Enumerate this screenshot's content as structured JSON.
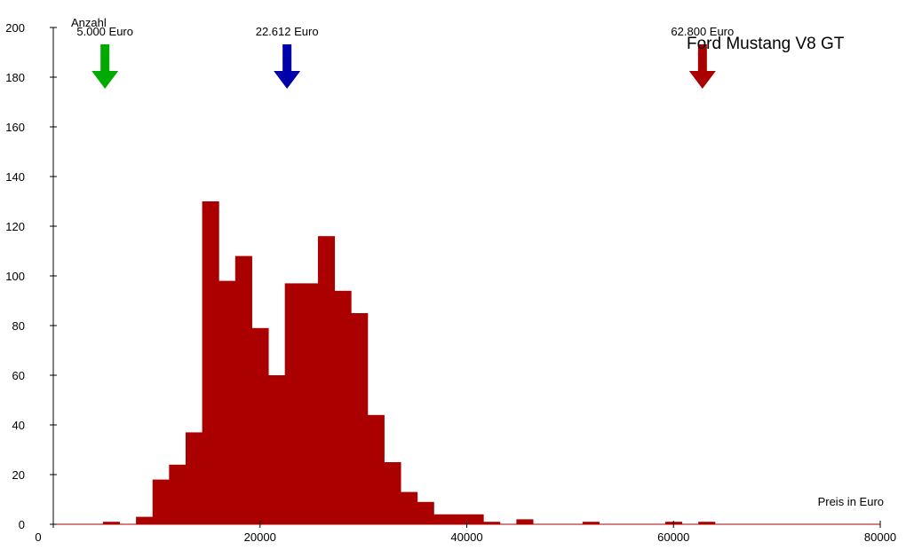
{
  "chart_data": {
    "type": "bar",
    "title": "Ford Mustang V8 GT",
    "ylabel": "Anzahl",
    "xlabel": "Preis in Euro",
    "xlim": [
      0,
      80000
    ],
    "ylim": [
      0,
      200
    ],
    "x_ticks": [
      "0",
      "20000",
      "40000",
      "60000",
      "80000"
    ],
    "y_ticks": [
      "0",
      "20",
      "40",
      "60",
      "80",
      "100",
      "120",
      "140",
      "160",
      "180",
      "200"
    ],
    "bin_width": 1600,
    "bins": [
      {
        "x0": 4800,
        "count": 1
      },
      {
        "x0": 8000,
        "count": 3
      },
      {
        "x0": 9600,
        "count": 18
      },
      {
        "x0": 11200,
        "count": 24
      },
      {
        "x0": 12800,
        "count": 37
      },
      {
        "x0": 14400,
        "count": 130
      },
      {
        "x0": 16000,
        "count": 98
      },
      {
        "x0": 17600,
        "count": 108
      },
      {
        "x0": 19200,
        "count": 79
      },
      {
        "x0": 20800,
        "count": 60
      },
      {
        "x0": 22400,
        "count": 97
      },
      {
        "x0": 24000,
        "count": 97
      },
      {
        "x0": 25600,
        "count": 116
      },
      {
        "x0": 27200,
        "count": 94
      },
      {
        "x0": 28800,
        "count": 85
      },
      {
        "x0": 30400,
        "count": 44
      },
      {
        "x0": 32000,
        "count": 25
      },
      {
        "x0": 33600,
        "count": 13
      },
      {
        "x0": 35200,
        "count": 9
      },
      {
        "x0": 36800,
        "count": 4
      },
      {
        "x0": 38400,
        "count": 4
      },
      {
        "x0": 40000,
        "count": 4
      },
      {
        "x0": 41600,
        "count": 1
      },
      {
        "x0": 44800,
        "count": 2
      },
      {
        "x0": 51200,
        "count": 1
      },
      {
        "x0": 59200,
        "count": 1
      },
      {
        "x0": 62400,
        "count": 1
      }
    ],
    "markers": [
      {
        "value": 5000,
        "label": "5.000 Euro",
        "color": "#00aa00"
      },
      {
        "value": 22612,
        "label": "22.612 Euro",
        "color": "#0000aa"
      },
      {
        "value": 62800,
        "label": "62.800 Euro",
        "color": "#aa0000"
      }
    ],
    "bar_color": "#aa0000",
    "grid": false
  }
}
